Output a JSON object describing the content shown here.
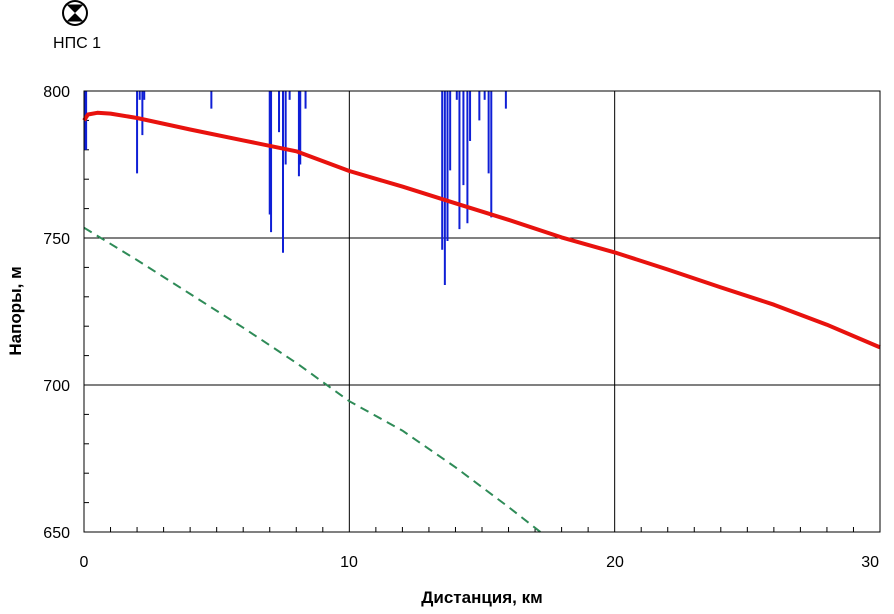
{
  "chart_data": {
    "type": "line",
    "xlabel": "Дистанция, км",
    "ylabel": "Напоры, м",
    "xlim": [
      0,
      30
    ],
    "ylim": [
      650,
      800
    ],
    "x_ticks": [
      "0",
      "10",
      "20",
      "30"
    ],
    "y_ticks": [
      "650",
      "700",
      "750",
      "800"
    ],
    "grid": true,
    "station": {
      "label": "НПС 1",
      "x": 0,
      "icon": "valve-icon"
    },
    "series": [
      {
        "id": "head",
        "color": "#e8120e",
        "style": "solid",
        "points": [
          [
            0,
            790
          ],
          [
            0.15,
            792
          ],
          [
            0.5,
            792.6
          ],
          [
            1,
            792.3
          ],
          [
            2,
            790.8
          ],
          [
            4,
            786.9
          ],
          [
            6,
            783.2
          ],
          [
            8,
            779.5
          ],
          [
            10,
            772.8
          ],
          [
            12,
            767.5
          ],
          [
            14,
            761.8
          ],
          [
            16,
            756.2
          ],
          [
            18,
            750.2
          ],
          [
            20,
            745.1
          ],
          [
            22,
            739.3
          ],
          [
            24,
            733.2
          ],
          [
            26,
            727.3
          ],
          [
            28,
            720.5
          ],
          [
            30,
            712.8
          ]
        ]
      },
      {
        "id": "lower",
        "color": "#2e8b57",
        "style": "dashed",
        "points": [
          [
            0,
            753.5
          ],
          [
            2,
            742.5
          ],
          [
            4,
            731
          ],
          [
            6,
            719.5
          ],
          [
            8,
            707.5
          ],
          [
            10,
            694.5
          ],
          [
            12,
            684.5
          ],
          [
            14,
            672
          ],
          [
            16,
            658.5
          ],
          [
            17.2,
            650
          ]
        ]
      },
      {
        "id": "profile",
        "color": "#0f1fd6",
        "style": "spikes",
        "baseline": 800,
        "spikes": [
          [
            0.02,
            780
          ],
          [
            0.08,
            780
          ],
          [
            2.0,
            772
          ],
          [
            2.1,
            797
          ],
          [
            2.2,
            785
          ],
          [
            2.27,
            797
          ],
          [
            4.8,
            794
          ],
          [
            7.0,
            758
          ],
          [
            7.05,
            752
          ],
          [
            7.35,
            786
          ],
          [
            7.5,
            745
          ],
          [
            7.6,
            775
          ],
          [
            7.75,
            797
          ],
          [
            8.1,
            771
          ],
          [
            8.15,
            775
          ],
          [
            8.35,
            794
          ],
          [
            13.5,
            746
          ],
          [
            13.6,
            734
          ],
          [
            13.7,
            749
          ],
          [
            13.8,
            773
          ],
          [
            14.05,
            797
          ],
          [
            14.15,
            753
          ],
          [
            14.3,
            768
          ],
          [
            14.45,
            755
          ],
          [
            14.55,
            783
          ],
          [
            14.9,
            790
          ],
          [
            15.1,
            797
          ],
          [
            15.25,
            772
          ],
          [
            15.35,
            757
          ],
          [
            15.9,
            794
          ]
        ]
      }
    ]
  }
}
